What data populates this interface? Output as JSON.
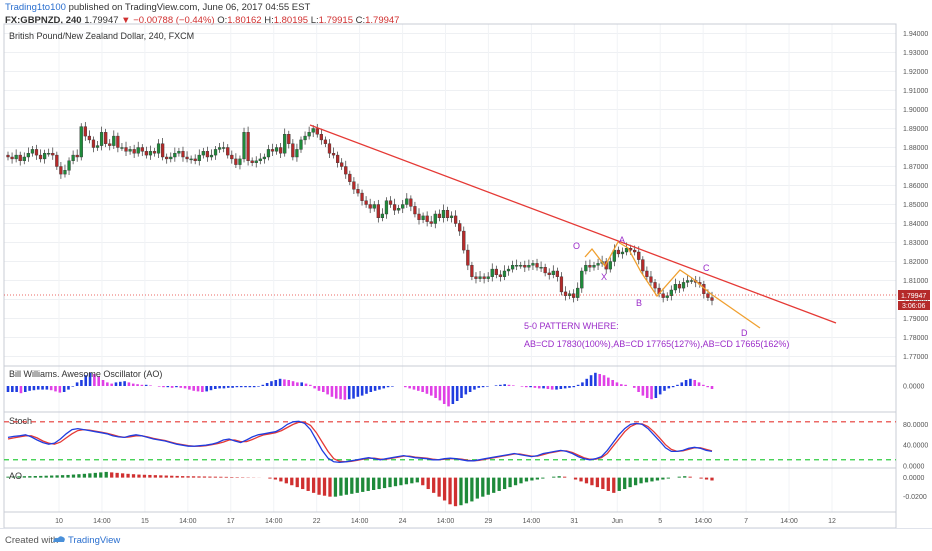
{
  "header": {
    "author": "Trading1to100",
    "published_text": "published on TradingView.com, June 06, 2017 04:55 EST",
    "symbol": "FX:GBPNZD, 240",
    "last_price": "1.79947",
    "change": "−0.00788 (−0.44%)",
    "open_label": "O:",
    "open_value": "1.80162",
    "high_label": "H:",
    "high_value": "1.80195",
    "low_label": "L:",
    "low_value": "1.79915",
    "close_label": "C:",
    "close_value": "1.79947"
  },
  "footer": {
    "created_with": "Created with",
    "brand": "TradingView"
  },
  "colors": {
    "up": "#1e8a3a",
    "down": "#b52a2a",
    "trendline": "#e53935",
    "pattern": "#f0a030",
    "pattern_label": "#9b2cc9",
    "ao_up": "#1f3de0",
    "ao_down": "#e040e6",
    "stoch_k": "#1f3de0",
    "stoch_d": "#e53935",
    "level_upper": "#e53935",
    "level_lower": "#2ecc40",
    "ac_up": "#1e8a3a",
    "ac_down": "#d03030",
    "price_tag": "#b52a2a"
  },
  "chart_data": [
    {
      "type": "candlestick",
      "title": "British Pound/New Zealand Dollar, 240, FXCM",
      "ylim": [
        1.765,
        1.945
      ],
      "y_ticks": [
        "1.94000",
        "1.93000",
        "1.92000",
        "1.91000",
        "1.90000",
        "1.89000",
        "1.88000",
        "1.87000",
        "1.86000",
        "1.85000",
        "1.84000",
        "1.83000",
        "1.82000",
        "1.81000",
        "1.80000",
        "1.79000",
        "1.78000",
        "1.77000"
      ],
      "x_ticks": [
        "10",
        "14:00",
        "15",
        "14:00",
        "17",
        "14:00",
        "22",
        "14:00",
        "24",
        "14:00",
        "29",
        "14:00",
        "31",
        "Jun",
        "5",
        "14:00",
        "7",
        "14:00",
        "12"
      ],
      "current_price_tag": "1.79947",
      "countdown_tag": "3:06:06",
      "close": [
        1.875,
        1.874,
        1.876,
        1.873,
        1.875,
        1.877,
        1.879,
        1.876,
        1.874,
        1.877,
        1.877,
        1.876,
        1.87,
        1.866,
        1.868,
        1.873,
        1.876,
        1.875,
        1.891,
        1.886,
        1.884,
        1.88,
        1.881,
        1.888,
        1.882,
        1.881,
        1.886,
        1.88,
        1.88,
        1.878,
        1.879,
        1.877,
        1.88,
        1.878,
        1.876,
        1.878,
        1.877,
        1.882,
        1.875,
        1.874,
        1.875,
        1.877,
        1.878,
        1.875,
        1.874,
        1.874,
        1.873,
        1.876,
        1.878,
        1.875,
        1.876,
        1.879,
        1.88,
        1.88,
        1.876,
        1.874,
        1.871,
        1.874,
        1.888,
        1.873,
        1.872,
        1.873,
        1.874,
        1.875,
        1.879,
        1.878,
        1.88,
        1.877,
        1.887,
        1.882,
        1.875,
        1.879,
        1.884,
        1.886,
        1.888,
        1.89,
        1.887,
        1.884,
        1.882,
        1.877,
        1.876,
        1.872,
        1.87,
        1.866,
        1.862,
        1.858,
        1.856,
        1.852,
        1.85,
        1.848,
        1.85,
        1.843,
        1.845,
        1.852,
        1.85,
        1.847,
        1.848,
        1.85,
        1.853,
        1.849,
        1.845,
        1.842,
        1.844,
        1.841,
        1.84,
        1.845,
        1.843,
        1.847,
        1.843,
        1.844,
        1.84,
        1.836,
        1.826,
        1.818,
        1.812,
        1.811,
        1.812,
        1.811,
        1.812,
        1.816,
        1.813,
        1.812,
        1.815,
        1.816,
        1.818,
        1.818,
        1.818,
        1.817,
        1.818,
        1.819,
        1.817,
        1.817,
        1.814,
        1.813,
        1.815,
        1.812,
        1.804,
        1.802,
        1.803,
        1.801,
        1.806,
        1.815,
        1.818,
        1.817,
        1.818,
        1.819,
        1.82,
        1.816,
        1.82,
        1.826,
        1.824,
        1.825,
        1.827,
        1.826,
        1.825,
        1.821,
        1.815,
        1.812,
        1.809,
        1.806,
        1.803,
        1.801,
        1.802,
        1.805,
        1.808,
        1.806,
        1.809,
        1.81,
        1.81,
        1.809,
        1.808,
        1.803,
        1.801,
        1.7995
      ],
      "annotations": {
        "wave_labels": [
          "O",
          "A",
          "X",
          "B",
          "C",
          "D"
        ],
        "pattern_title": "5-0 PATTERN WHERE:",
        "pattern_text": "AB=CD 17830(100%),AB=CD 17765(127%),AB=CD 17665(162%)"
      }
    },
    {
      "type": "bar",
      "title": "Bill Williams. Awesome Oscillator (AO)",
      "ylim": [
        -0.004,
        0.003
      ],
      "y_ticks": [
        "0.0000"
      ],
      "values": [
        -0.001,
        -0.001,
        -0.001,
        -0.0012,
        -0.001,
        -0.0008,
        -0.0007,
        -0.0006,
        -0.0006,
        -0.0006,
        -0.0007,
        -0.0009,
        -0.0011,
        -0.001,
        -0.0006,
        -0.0001,
        0.0006,
        0.001,
        0.0018,
        0.0022,
        0.002,
        0.0016,
        0.001,
        0.0006,
        0.0004,
        0.0006,
        0.0007,
        0.0008,
        0.0006,
        0.0004,
        0.0003,
        0.0002,
        0.0002,
        0.0001,
        0.0,
        -0.0001,
        -0.0002,
        -0.0002,
        -0.0003,
        -0.0002,
        -0.0003,
        -0.0004,
        -0.0006,
        -0.0008,
        -0.0009,
        -0.001,
        -0.0009,
        -0.0007,
        -0.0005,
        -0.0004,
        -0.0004,
        -0.0003,
        -0.0003,
        -0.0002,
        -0.0002,
        -0.0002,
        -0.0002,
        -0.0002,
        -0.0001,
        0.0002,
        0.0005,
        0.0008,
        0.001,
        0.0012,
        0.0011,
        0.001,
        0.0008,
        0.0006,
        0.0006,
        0.0004,
        0.0002,
        -0.0004,
        -0.0008,
        -0.001,
        -0.0014,
        -0.0018,
        -0.0021,
        -0.0022,
        -0.0023,
        -0.0022,
        -0.0021,
        -0.0018,
        -0.0016,
        -0.0013,
        -0.001,
        -0.0008,
        -0.0006,
        -0.0004,
        -0.0002,
        -0.0001,
        0.0,
        0.0,
        -0.0002,
        -0.0004,
        -0.0006,
        -0.0008,
        -0.001,
        -0.0013,
        -0.0016,
        -0.002,
        -0.0024,
        -0.003,
        -0.0034,
        -0.003,
        -0.0025,
        -0.002,
        -0.0014,
        -0.001,
        -0.0006,
        -0.0003,
        -0.0002,
        -0.0001,
        0.0,
        0.0001,
        0.0002,
        0.0003,
        0.0002,
        0.0001,
        0.0,
        -0.0001,
        -0.0002,
        -0.0002,
        -0.0003,
        -0.0004,
        -0.0004,
        -0.0005,
        -0.0006,
        -0.0006,
        -0.0005,
        -0.0004,
        -0.0003,
        -0.0002,
        0.0002,
        0.0006,
        0.0012,
        0.0018,
        0.0022,
        0.002,
        0.0018,
        0.0014,
        0.001,
        0.0006,
        0.0003,
        0.0002,
        0.0,
        -0.0003,
        -0.001,
        -0.0016,
        -0.002,
        -0.0022,
        -0.002,
        -0.0014,
        -0.0008,
        -0.0004,
        -0.0002,
        0.0002,
        0.0006,
        0.001,
        0.0012,
        0.001,
        0.0006,
        0.0002,
        -0.0002,
        -0.0005
      ]
    },
    {
      "type": "line",
      "title": "Stoch",
      "ylim": [
        0,
        100
      ],
      "y_ticks": [
        "80.0000",
        "40.0000",
        "0.0000"
      ],
      "levels": [
        85,
        12
      ],
      "series": [
        {
          "key": "k",
          "values": [
            55,
            57,
            58,
            60,
            56,
            50,
            45,
            42,
            44,
            52,
            62,
            70,
            72,
            70,
            68,
            66,
            64,
            62,
            58,
            56,
            55,
            58,
            60,
            58,
            55,
            52,
            50,
            48,
            45,
            42,
            40,
            38,
            38,
            39,
            40,
            42,
            45,
            50,
            52,
            48,
            45,
            50,
            56,
            60,
            62,
            64,
            66,
            72,
            80,
            85,
            86,
            82,
            70,
            50,
            30,
            15,
            8,
            7,
            8,
            10,
            12,
            14,
            16,
            14,
            12,
            14,
            16,
            18,
            20,
            18,
            16,
            15,
            14,
            12,
            12,
            14,
            15,
            14,
            12,
            10,
            10,
            12,
            14,
            16,
            18,
            20,
            22,
            24,
            22,
            20,
            18,
            20,
            24,
            26,
            28,
            30,
            28,
            24,
            18,
            14,
            12,
            14,
            18,
            30,
            45,
            60,
            72,
            80,
            82,
            80,
            72,
            60,
            48,
            35,
            28,
            28,
            30,
            34,
            36,
            34,
            30,
            28
          ]
        },
        {
          "key": "d",
          "values": [
            52,
            54,
            56,
            58,
            58,
            54,
            48,
            44,
            42,
            46,
            54,
            62,
            68,
            70,
            69,
            67,
            65,
            63,
            60,
            57,
            55,
            56,
            58,
            58,
            56,
            53,
            51,
            49,
            46,
            43,
            41,
            39,
            38,
            38,
            39,
            41,
            43,
            46,
            50,
            50,
            47,
            47,
            51,
            56,
            60,
            62,
            64,
            68,
            74,
            80,
            84,
            84,
            78,
            64,
            46,
            28,
            14,
            9,
            8,
            9,
            11,
            13,
            15,
            15,
            13,
            13,
            15,
            17,
            19,
            19,
            17,
            16,
            15,
            13,
            12,
            13,
            14,
            14,
            13,
            11,
            10,
            11,
            13,
            15,
            17,
            19,
            21,
            23,
            23,
            21,
            19,
            19,
            22,
            25,
            27,
            29,
            29,
            26,
            21,
            16,
            13,
            13,
            16,
            24,
            38,
            52,
            66,
            76,
            81,
            81,
            76,
            66,
            54,
            41,
            32,
            28,
            29,
            32,
            35,
            35,
            32,
            29
          ]
        }
      ]
    },
    {
      "type": "bar",
      "title": "AO",
      "ylim": [
        -0.034,
        0.008
      ],
      "y_ticks": [
        "0.0000",
        "-0.0200"
      ],
      "values": [
        0.001,
        0.0012,
        0.0014,
        0.0015,
        0.0016,
        0.0017,
        0.0018,
        0.002,
        0.0022,
        0.0024,
        0.0026,
        0.0028,
        0.0032,
        0.0036,
        0.004,
        0.0045,
        0.005,
        0.0055,
        0.006,
        0.0055,
        0.005,
        0.0045,
        0.004,
        0.0036,
        0.0032,
        0.003,
        0.0028,
        0.0026,
        0.0024,
        0.0022,
        0.002,
        0.0018,
        0.0016,
        0.0015,
        0.0014,
        0.0013,
        0.0012,
        0.0011,
        0.001,
        0.0009,
        0.0008,
        0.0006,
        0.0005,
        0.0004,
        0.0003,
        0.0002,
        0.0001,
        0.0,
        -0.001,
        -0.002,
        -0.004,
        -0.006,
        -0.008,
        -0.01,
        -0.012,
        -0.014,
        -0.016,
        -0.018,
        -0.019,
        -0.02,
        -0.02,
        -0.019,
        -0.018,
        -0.017,
        -0.016,
        -0.015,
        -0.014,
        -0.013,
        -0.012,
        -0.011,
        -0.01,
        -0.009,
        -0.008,
        -0.007,
        -0.006,
        -0.005,
        -0.008,
        -0.012,
        -0.016,
        -0.02,
        -0.024,
        -0.028,
        -0.03,
        -0.029,
        -0.027,
        -0.025,
        -0.022,
        -0.02,
        -0.018,
        -0.016,
        -0.014,
        -0.012,
        -0.01,
        -0.008,
        -0.006,
        -0.004,
        -0.003,
        -0.002,
        -0.001,
        0.0,
        0.001,
        0.0015,
        0.001,
        0.0,
        -0.002,
        -0.004,
        -0.006,
        -0.008,
        -0.01,
        -0.012,
        -0.014,
        -0.016,
        -0.014,
        -0.012,
        -0.01,
        -0.008,
        -0.006,
        -0.005,
        -0.004,
        -0.003,
        -0.002,
        -0.001,
        0.0,
        0.001,
        0.0015,
        0.001,
        0.0,
        -0.001,
        -0.002,
        -0.003
      ]
    }
  ]
}
